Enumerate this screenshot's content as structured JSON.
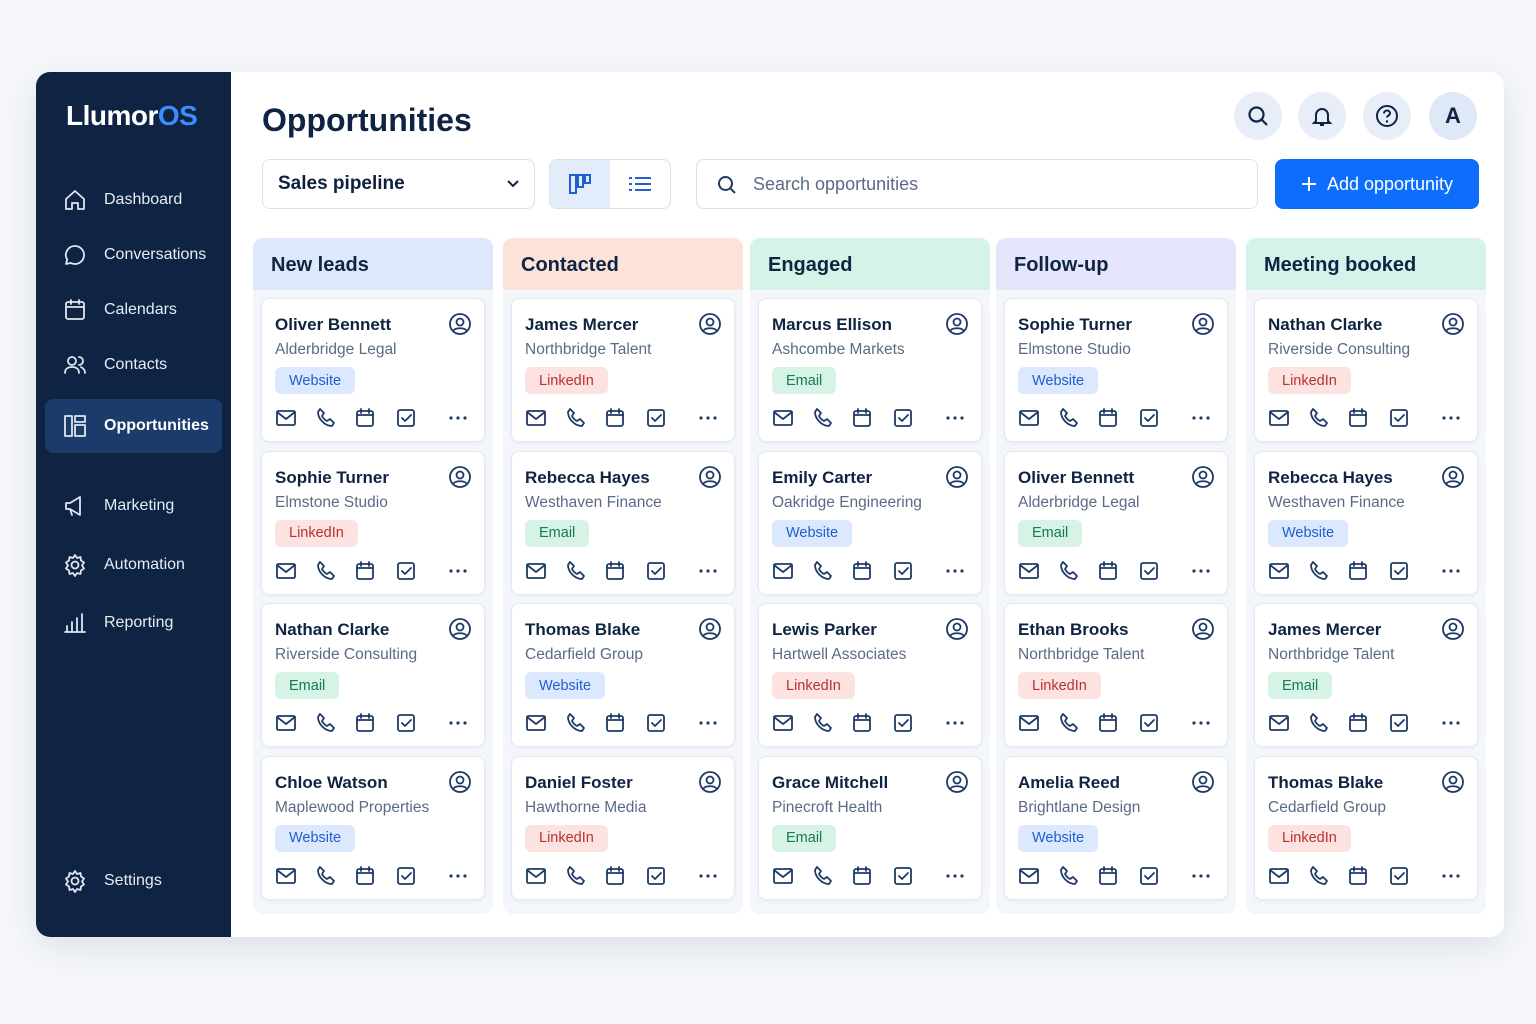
{
  "brand": {
    "name": "Llumor",
    "accent": "OS"
  },
  "nav": {
    "items": [
      "Dashboard",
      "Conversations",
      "Calendars",
      "Contacts",
      "Opportunities",
      "Marketing",
      "Automation",
      "Reporting"
    ],
    "active": 4,
    "settings": "Settings"
  },
  "header": {
    "title": "Opportunities",
    "pipeline": "Sales pipeline",
    "search_placeholder": "Search opportunities",
    "add_button": "Add opportunity",
    "avatar": "A"
  },
  "board": {
    "columns": [
      {
        "title": "New leads",
        "cards": [
          {
            "name": "Oliver Bennett",
            "company": "Alderbridge Legal",
            "source": "Website"
          },
          {
            "name": "Sophie Turner",
            "company": "Elmstone Studio",
            "source": "LinkedIn"
          },
          {
            "name": "Nathan Clarke",
            "company": "Riverside Consulting",
            "source": "Email"
          },
          {
            "name": "Chloe Watson",
            "company": "Maplewood Properties",
            "source": "Website"
          }
        ]
      },
      {
        "title": "Contacted",
        "cards": [
          {
            "name": "James Mercer",
            "company": "Northbridge Talent",
            "source": "LinkedIn"
          },
          {
            "name": "Rebecca Hayes",
            "company": "Westhaven Finance",
            "source": "Email"
          },
          {
            "name": "Thomas Blake",
            "company": "Cedarfield Group",
            "source": "Website"
          },
          {
            "name": "Daniel Foster",
            "company": "Hawthorne Media",
            "source": "LinkedIn"
          }
        ]
      },
      {
        "title": "Engaged",
        "cards": [
          {
            "name": "Marcus Ellison",
            "company": "Ashcombe Markets",
            "source": "Email"
          },
          {
            "name": "Emily Carter",
            "company": "Oakridge Engineering",
            "source": "Website"
          },
          {
            "name": "Lewis Parker",
            "company": "Hartwell Associates",
            "source": "LinkedIn"
          },
          {
            "name": "Grace Mitchell",
            "company": "Pinecroft Health",
            "source": "Email"
          }
        ]
      },
      {
        "title": "Follow-up",
        "cards": [
          {
            "name": "Sophie Turner",
            "company": "Elmstone Studio",
            "source": "Website"
          },
          {
            "name": "Oliver Bennett",
            "company": "Alderbridge Legal",
            "source": "Email"
          },
          {
            "name": "Ethan Brooks",
            "company": "Northbridge Talent",
            "source": "LinkedIn"
          },
          {
            "name": "Amelia Reed",
            "company": "Brightlane Design",
            "source": "Website"
          }
        ]
      },
      {
        "title": "Meeting booked",
        "cards": [
          {
            "name": "Nathan Clarke",
            "company": "Riverside Consulting",
            "source": "LinkedIn"
          },
          {
            "name": "Rebecca Hayes",
            "company": "Westhaven Finance",
            "source": "Website"
          },
          {
            "name": "James Mercer",
            "company": "Northbridge Talent",
            "source": "Email"
          },
          {
            "name": "Thomas Blake",
            "company": "Cedarfield Group",
            "source": "LinkedIn"
          }
        ]
      }
    ]
  }
}
